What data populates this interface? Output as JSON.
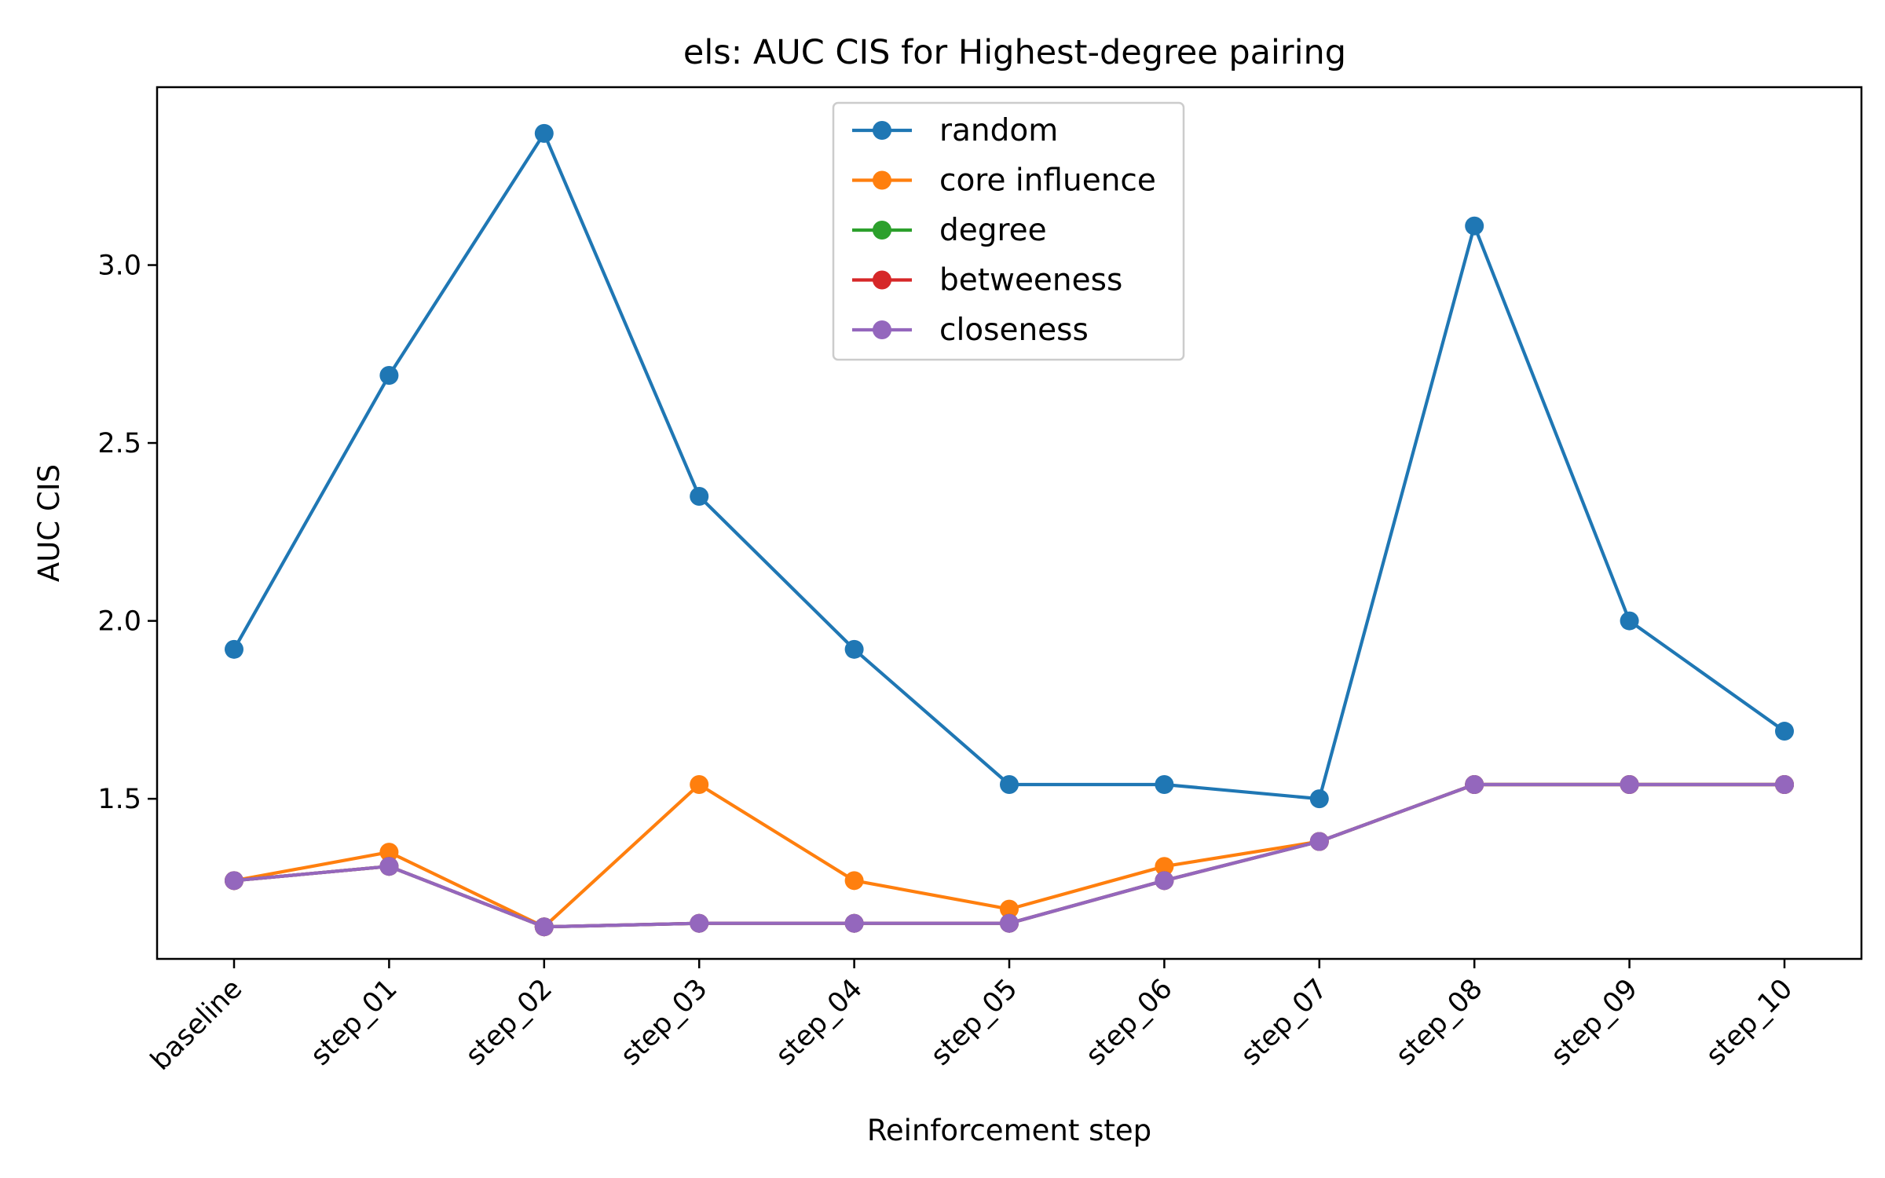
{
  "chart_data": {
    "type": "line",
    "title": "els: AUC CIS for Highest-degree pairing",
    "xlabel": "Reinforcement step",
    "ylabel": "AUC CIS",
    "categories": [
      "baseline",
      "step_01",
      "step_02",
      "step_03",
      "step_04",
      "step_05",
      "step_06",
      "step_07",
      "step_08",
      "step_09",
      "step_10"
    ],
    "ylim": [
      1.05,
      3.5
    ],
    "yticks": [
      "1.5",
      "2.0",
      "2.5",
      "3.0"
    ],
    "grid": false,
    "legend_position": "top-center",
    "series": [
      {
        "name": "random",
        "color": "#1f77b4",
        "values": [
          1.92,
          2.69,
          3.37,
          2.35,
          1.92,
          1.54,
          1.54,
          1.5,
          3.11,
          2.0,
          1.69
        ]
      },
      {
        "name": "core influence",
        "color": "#ff7f0e",
        "values": [
          1.27,
          1.35,
          1.14,
          1.54,
          1.27,
          1.19,
          1.31,
          1.38,
          1.54,
          1.54,
          1.54
        ]
      },
      {
        "name": "degree",
        "color": "#2ca02c",
        "values": [
          1.27,
          1.31,
          1.14,
          1.15,
          1.15,
          1.15,
          1.27,
          1.38,
          1.54,
          1.54,
          1.54
        ]
      },
      {
        "name": "betweeness",
        "color": "#d62728",
        "values": [
          1.27,
          1.31,
          1.14,
          1.15,
          1.15,
          1.15,
          1.27,
          1.38,
          1.54,
          1.54,
          1.54
        ]
      },
      {
        "name": "closeness",
        "color": "#9467bd",
        "values": [
          1.27,
          1.31,
          1.14,
          1.15,
          1.15,
          1.15,
          1.27,
          1.38,
          1.54,
          1.54,
          1.54
        ]
      }
    ]
  }
}
